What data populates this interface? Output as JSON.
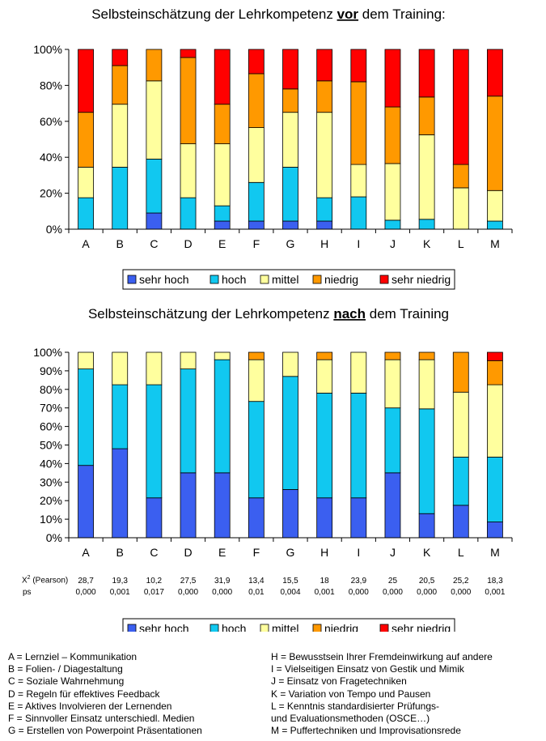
{
  "colors": {
    "sehr_hoch": "#3b5ff0",
    "hoch": "#11c8f0",
    "mittel": "#ffff9e",
    "niedrig": "#ff9900",
    "sehr_niedrig": "#ff0000"
  },
  "chart_data": [
    {
      "type": "bar",
      "stacked": true,
      "title": {
        "pre": "Selbsteinschätzung der Lehrkompetenz ",
        "em": "vor",
        "post": " dem Training:"
      },
      "categories": [
        "A",
        "B",
        "C",
        "D",
        "E",
        "F",
        "G",
        "H",
        "I",
        "J",
        "K",
        "L",
        "M"
      ],
      "ylim": [
        0,
        100
      ],
      "yticks": [
        "0%",
        "20%",
        "40%",
        "60%",
        "80%",
        "100%"
      ],
      "legend": [
        "sehr hoch",
        "hoch",
        "mittel",
        "niedrig",
        "sehr niedrig"
      ],
      "series": [
        {
          "name": "sehr hoch",
          "values": [
            0,
            0,
            9,
            0,
            4.5,
            4.5,
            4.5,
            4.5,
            0,
            0,
            0,
            0,
            0
          ]
        },
        {
          "name": "hoch",
          "values": [
            17.5,
            34.5,
            30,
            17.5,
            8.5,
            21.5,
            30,
            13,
            18,
            5,
            5.5,
            0,
            4.5
          ]
        },
        {
          "name": "mittel",
          "values": [
            17,
            35,
            43.5,
            30,
            34.5,
            30.5,
            30.5,
            47.5,
            18,
            31.5,
            47,
            23,
            17
          ]
        },
        {
          "name": "niedrig",
          "values": [
            30.5,
            21.5,
            17.5,
            48,
            22,
            30,
            13,
            17.5,
            46,
            31.5,
            21,
            13,
            52.5
          ]
        },
        {
          "name": "sehr niedrig",
          "values": [
            35,
            9,
            0,
            4.5,
            30.5,
            13.5,
            22,
            17.5,
            18,
            32,
            26.5,
            64,
            26
          ]
        }
      ]
    },
    {
      "type": "bar",
      "stacked": true,
      "title": {
        "pre": "Selbsteinschätzung der Lehrkompetenz ",
        "em": "nach",
        "post": " dem Training"
      },
      "categories": [
        "A",
        "B",
        "C",
        "D",
        "E",
        "F",
        "G",
        "H",
        "I",
        "J",
        "K",
        "L",
        "M"
      ],
      "ylim": [
        0,
        100
      ],
      "yticks": [
        "0%",
        "10%",
        "20%",
        "30%",
        "40%",
        "50%",
        "60%",
        "70%",
        "80%",
        "90%",
        "100%"
      ],
      "legend": [
        "sehr hoch",
        "hoch",
        "mittel",
        "niedrig",
        "sehr niedrig"
      ],
      "series": [
        {
          "name": "sehr hoch",
          "values": [
            39,
            48,
            21.5,
            35,
            35,
            21.5,
            26,
            21.5,
            21.5,
            35,
            13,
            17.5,
            8.5
          ]
        },
        {
          "name": "hoch",
          "values": [
            52,
            34.5,
            61,
            56,
            61,
            52,
            61,
            56.5,
            56.5,
            35,
            56.5,
            26,
            35
          ]
        },
        {
          "name": "mittel",
          "values": [
            9,
            17.5,
            17.5,
            9,
            4,
            22.5,
            13,
            18,
            22,
            26,
            26.5,
            35,
            39
          ]
        },
        {
          "name": "niedrig",
          "values": [
            0,
            0,
            0,
            0,
            0,
            4,
            0,
            4,
            0,
            4,
            4,
            21.5,
            13
          ]
        },
        {
          "name": "sehr niedrig",
          "values": [
            0,
            0,
            0,
            0,
            0,
            0,
            0,
            0,
            0,
            0,
            0,
            0,
            4.5
          ]
        }
      ]
    }
  ],
  "stats": {
    "chi_label": "X",
    "chi_sup": "2",
    "chi_suffix": " (Pearson)",
    "ps_label": "ps",
    "chi": [
      "28,7",
      "19,3",
      "10,2",
      "27,5",
      "31,9",
      "13,4",
      "15,5",
      "18",
      "23,9",
      "25",
      "20,5",
      "25,2",
      "18,3"
    ],
    "ps": [
      "0,000",
      "0,001",
      "0,017",
      "0,000",
      "0,000",
      "0,01",
      "0,004",
      "0,001",
      "0,000",
      "0,000",
      "0,000",
      "0,000",
      "0,001"
    ]
  },
  "notes": {
    "left": [
      "A = Lernziel – Kommunikation",
      "B = Folien- / Diagestaltung",
      "C = Soziale Wahrnehmung",
      "D = Regeln für effektives Feedback",
      "E = Aktives Involvieren der Lernenden",
      "F = Sinnvoller Einsatz unterschiedl. Medien",
      "G = Erstellen von Powerpoint Präsentationen"
    ],
    "right": [
      "H = Bewusstsein Ihrer Fremdeinwirkung auf andere",
      "I = Vielseitigen Einsatz von Gestik und Mimik",
      "J = Einsatz von Fragetechniken",
      "K = Variation von Tempo und Pausen",
      "L = Kenntnis standardisierter Prüfungs-",
      "und Evaluationsmethoden (OSCE…)",
      "M = Puffertechniken und Improvisationsrede"
    ]
  }
}
